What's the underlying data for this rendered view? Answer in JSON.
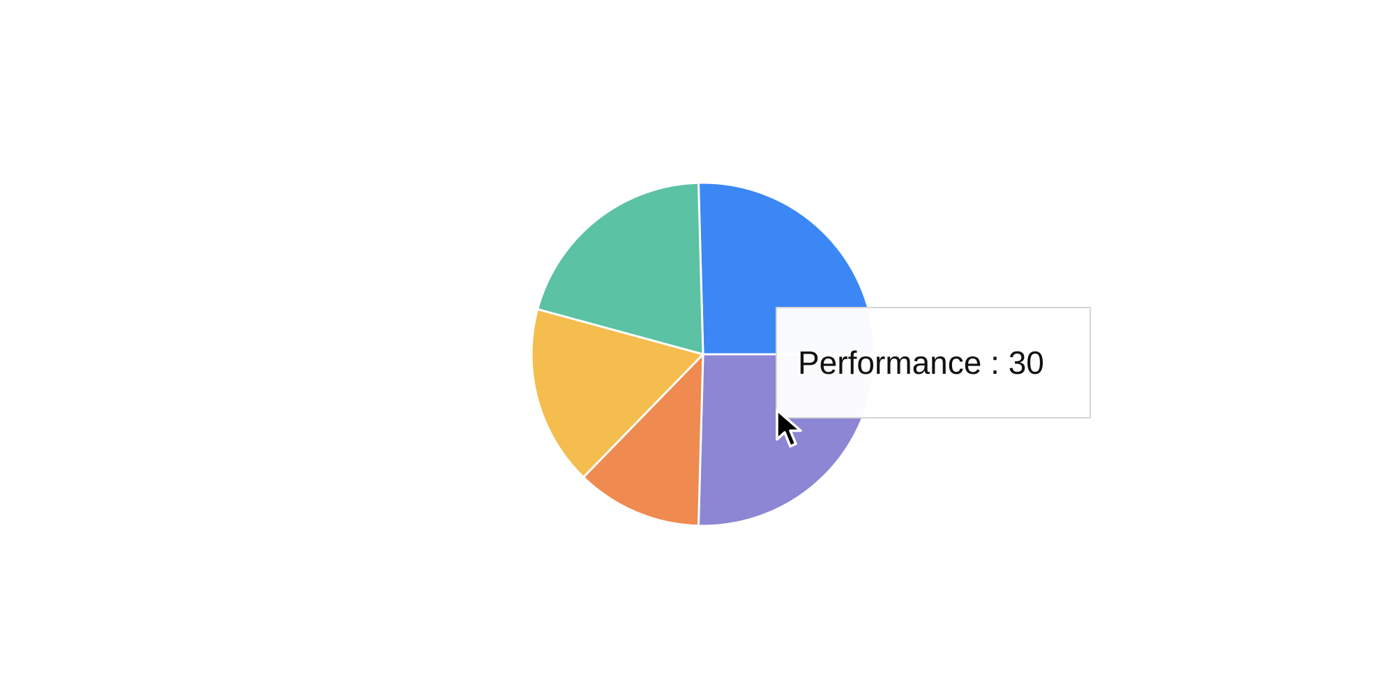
{
  "chart_data": {
    "type": "pie",
    "title": "",
    "slices": [
      {
        "label": "",
        "value": 30,
        "color": "#3b87f5"
      },
      {
        "label": "Performance",
        "value": 30,
        "color": "#8c86d4"
      },
      {
        "label": "",
        "value": 14,
        "color": "#ef8a50"
      },
      {
        "label": "",
        "value": 20,
        "color": "#f4bd4e"
      },
      {
        "label": "",
        "value": 24,
        "color": "#5bc2a3"
      }
    ],
    "hover_index": 1
  },
  "tooltip": {
    "label": "Performance",
    "separator": " : ",
    "value": "30"
  },
  "cursor_icon": "arrow-pointer-icon"
}
